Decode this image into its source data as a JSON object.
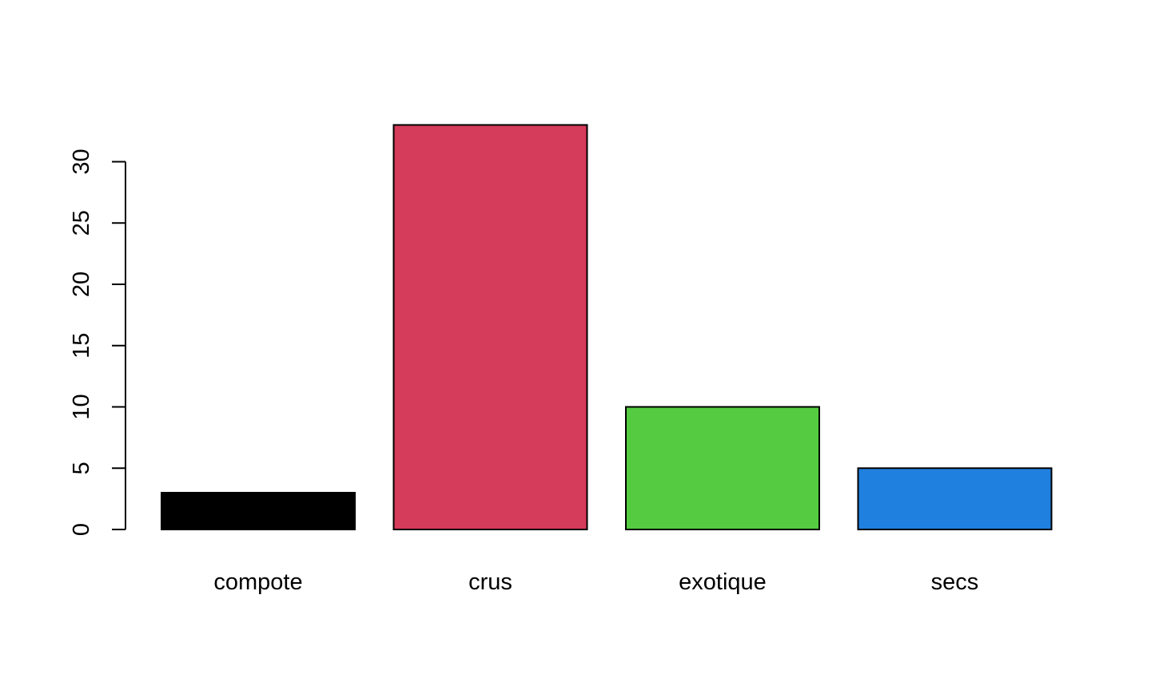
{
  "chart_data": {
    "type": "bar",
    "title": "",
    "xlabel": "",
    "ylabel": "",
    "categories": [
      "compote",
      "crus",
      "exotique",
      "secs"
    ],
    "values": [
      3,
      33,
      10,
      5
    ],
    "colors": [
      "#000000",
      "#d53b5a",
      "#54cb41",
      "#1f80e0"
    ],
    "ylim": [
      0,
      34
    ],
    "yticks": [
      0,
      5,
      10,
      15,
      20,
      25,
      30
    ],
    "grid": false,
    "legend": "none"
  }
}
